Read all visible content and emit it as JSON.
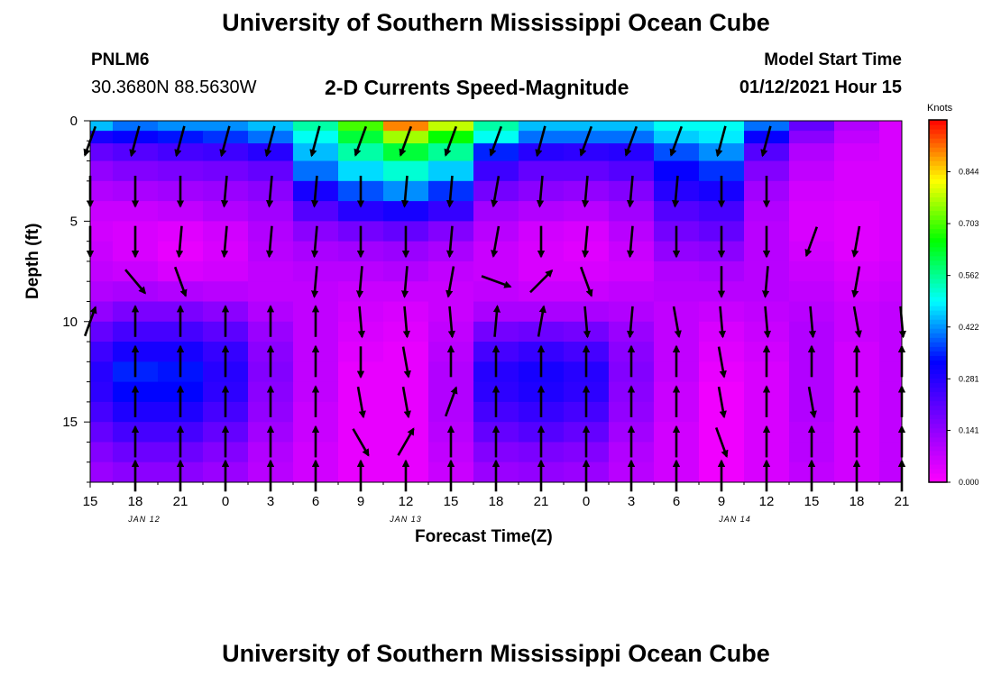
{
  "header": {
    "title": "University of Southern Mississippi Ocean Cube",
    "station": "PNLM6",
    "coords": "30.3680N 88.5630W",
    "subtitle": "2-D Currents Speed-Magnitude",
    "model_start_label": "Model Start Time",
    "model_start_value": "01/12/2021 Hour 15"
  },
  "footer": {
    "title": "University of Southern Mississippi Ocean Cube"
  },
  "chart_data": {
    "type": "heatmap",
    "title": "2-D Currents Speed-Magnitude",
    "xlabel": "Forecast Time(Z)",
    "ylabel": "Depth (ft)",
    "ylim": [
      18,
      0
    ],
    "x_tick_labels": [
      "15",
      "18",
      "21",
      "0",
      "3",
      "6",
      "9",
      "12",
      "15",
      "18",
      "21",
      "0",
      "3",
      "6",
      "9",
      "12",
      "15",
      "18",
      "21"
    ],
    "date_labels": [
      {
        "label": "JAN 12",
        "tick_index": 1.2
      },
      {
        "label": "JAN 13",
        "tick_index": 7.0
      },
      {
        "label": "JAN 14",
        "tick_index": 14.3
      }
    ],
    "y_ticks": [
      0,
      5,
      10,
      15
    ],
    "colorbar": {
      "unit": "Knots",
      "range": [
        0,
        0.985
      ],
      "tick_labels": [
        "0.000",
        "0.141",
        "0.281",
        "0.422",
        "0.562",
        "0.703",
        "0.844"
      ],
      "tick_values": [
        0,
        0.141,
        0.281,
        0.422,
        0.562,
        0.703,
        0.844
      ]
    },
    "colors": {
      "c0": "#ff00ff",
      "c1": "#8000ff",
      "c2": "#0000ff",
      "c3": "#00ffff",
      "c4": "#00ff00",
      "c5": "#ffff00",
      "c6": "#ff0000"
    },
    "grid": false,
    "legend": "right",
    "columns_x": [
      0,
      1,
      2,
      3,
      4,
      5,
      6,
      7,
      8,
      9,
      10,
      11,
      12,
      13,
      14,
      15,
      16,
      17,
      18
    ],
    "depth_rows": [
      0.25,
      0.75,
      1.5,
      2.5,
      3.5,
      4.5,
      5.5,
      6.5,
      7.5,
      8.5,
      9.5,
      10.5,
      11.5,
      12.5,
      13.5,
      14.5,
      15.5,
      16.5,
      17.5
    ],
    "speed_grid": [
      [
        0.45,
        0.4,
        0.42,
        0.42,
        0.45,
        0.55,
        0.7,
        0.9,
        0.78,
        0.55,
        0.45,
        0.45,
        0.45,
        0.5,
        0.5,
        0.4,
        0.2,
        0.1,
        0.05
      ],
      [
        0.3,
        0.32,
        0.34,
        0.36,
        0.4,
        0.5,
        0.62,
        0.76,
        0.66,
        0.5,
        0.4,
        0.4,
        0.4,
        0.46,
        0.48,
        0.32,
        0.15,
        0.08,
        0.05
      ],
      [
        0.2,
        0.22,
        0.24,
        0.25,
        0.28,
        0.45,
        0.55,
        0.62,
        0.56,
        0.35,
        0.28,
        0.27,
        0.28,
        0.38,
        0.42,
        0.22,
        0.1,
        0.06,
        0.05
      ],
      [
        0.14,
        0.16,
        0.17,
        0.18,
        0.2,
        0.4,
        0.47,
        0.52,
        0.46,
        0.25,
        0.2,
        0.2,
        0.22,
        0.32,
        0.36,
        0.16,
        0.08,
        0.05,
        0.05
      ],
      [
        0.1,
        0.11,
        0.12,
        0.13,
        0.15,
        0.3,
        0.38,
        0.42,
        0.36,
        0.18,
        0.15,
        0.14,
        0.16,
        0.28,
        0.3,
        0.12,
        0.06,
        0.05,
        0.05
      ],
      [
        0.07,
        0.07,
        0.08,
        0.1,
        0.12,
        0.22,
        0.28,
        0.3,
        0.26,
        0.12,
        0.1,
        0.09,
        0.12,
        0.22,
        0.24,
        0.1,
        0.05,
        0.04,
        0.05
      ],
      [
        0.06,
        0.05,
        0.04,
        0.06,
        0.1,
        0.15,
        0.18,
        0.2,
        0.16,
        0.09,
        0.06,
        0.05,
        0.09,
        0.18,
        0.2,
        0.09,
        0.05,
        0.04,
        0.05
      ],
      [
        0.07,
        0.05,
        0.03,
        0.05,
        0.09,
        0.11,
        0.12,
        0.13,
        0.11,
        0.07,
        0.05,
        0.04,
        0.07,
        0.14,
        0.15,
        0.09,
        0.06,
        0.04,
        0.05
      ],
      [
        0.08,
        0.07,
        0.05,
        0.06,
        0.08,
        0.09,
        0.09,
        0.1,
        0.08,
        0.07,
        0.05,
        0.05,
        0.06,
        0.1,
        0.11,
        0.09,
        0.07,
        0.05,
        0.06
      ],
      [
        0.1,
        0.11,
        0.1,
        0.09,
        0.08,
        0.08,
        0.07,
        0.07,
        0.07,
        0.08,
        0.07,
        0.07,
        0.08,
        0.09,
        0.09,
        0.09,
        0.08,
        0.06,
        0.07
      ],
      [
        0.14,
        0.17,
        0.17,
        0.15,
        0.1,
        0.08,
        0.06,
        0.05,
        0.07,
        0.11,
        0.11,
        0.11,
        0.1,
        0.08,
        0.07,
        0.08,
        0.09,
        0.07,
        0.08
      ],
      [
        0.2,
        0.24,
        0.24,
        0.21,
        0.13,
        0.08,
        0.05,
        0.04,
        0.08,
        0.18,
        0.19,
        0.18,
        0.13,
        0.08,
        0.05,
        0.07,
        0.1,
        0.07,
        0.08
      ],
      [
        0.25,
        0.3,
        0.3,
        0.26,
        0.15,
        0.08,
        0.04,
        0.03,
        0.09,
        0.24,
        0.26,
        0.24,
        0.15,
        0.08,
        0.04,
        0.06,
        0.1,
        0.06,
        0.08
      ],
      [
        0.28,
        0.35,
        0.34,
        0.28,
        0.16,
        0.08,
        0.03,
        0.03,
        0.1,
        0.28,
        0.3,
        0.28,
        0.16,
        0.08,
        0.03,
        0.05,
        0.1,
        0.06,
        0.08
      ],
      [
        0.27,
        0.33,
        0.33,
        0.27,
        0.15,
        0.08,
        0.03,
        0.03,
        0.1,
        0.27,
        0.29,
        0.27,
        0.15,
        0.07,
        0.02,
        0.05,
        0.1,
        0.06,
        0.08
      ],
      [
        0.24,
        0.29,
        0.29,
        0.24,
        0.14,
        0.07,
        0.03,
        0.03,
        0.1,
        0.24,
        0.26,
        0.24,
        0.14,
        0.07,
        0.02,
        0.05,
        0.1,
        0.06,
        0.08
      ],
      [
        0.2,
        0.24,
        0.24,
        0.2,
        0.12,
        0.07,
        0.03,
        0.03,
        0.09,
        0.2,
        0.22,
        0.2,
        0.12,
        0.06,
        0.02,
        0.05,
        0.09,
        0.06,
        0.08
      ],
      [
        0.16,
        0.19,
        0.19,
        0.16,
        0.1,
        0.06,
        0.03,
        0.03,
        0.08,
        0.16,
        0.17,
        0.16,
        0.1,
        0.06,
        0.02,
        0.05,
        0.09,
        0.06,
        0.08
      ],
      [
        0.13,
        0.15,
        0.15,
        0.13,
        0.09,
        0.06,
        0.03,
        0.03,
        0.07,
        0.13,
        0.14,
        0.13,
        0.09,
        0.06,
        0.02,
        0.05,
        0.08,
        0.06,
        0.08
      ]
    ],
    "vector_rows": [
      1,
      3.5,
      6,
      8,
      10,
      12,
      14,
      16,
      17.7
    ],
    "vector_columns": [
      0,
      1,
      2,
      3,
      4,
      5,
      6,
      7,
      8,
      9,
      10,
      11,
      12,
      13,
      14,
      15,
      16,
      17,
      18
    ],
    "vector_directions_deg": [
      [
        200,
        195,
        195,
        195,
        195,
        195,
        200,
        200,
        200,
        200,
        195,
        200,
        200,
        200,
        195,
        195,
        null,
        null,
        null
      ],
      [
        180,
        180,
        180,
        185,
        185,
        185,
        180,
        185,
        185,
        190,
        185,
        185,
        185,
        185,
        180,
        180,
        null,
        null,
        null
      ],
      [
        180,
        180,
        185,
        185,
        185,
        185,
        180,
        180,
        185,
        190,
        180,
        185,
        185,
        180,
        180,
        180,
        200,
        190,
        null
      ],
      [
        null,
        140,
        160,
        null,
        null,
        185,
        185,
        185,
        190,
        110,
        45,
        160,
        null,
        null,
        180,
        185,
        null,
        190,
        null
      ],
      [
        20,
        0,
        0,
        0,
        0,
        0,
        175,
        175,
        175,
        5,
        10,
        175,
        185,
        170,
        175,
        175,
        175,
        170,
        175
      ],
      [
        null,
        0,
        0,
        0,
        0,
        0,
        180,
        170,
        0,
        0,
        0,
        0,
        0,
        0,
        170,
        0,
        0,
        0,
        0
      ],
      [
        null,
        0,
        0,
        0,
        0,
        0,
        170,
        170,
        20,
        0,
        0,
        0,
        0,
        0,
        170,
        0,
        170,
        0,
        0
      ],
      [
        null,
        0,
        0,
        0,
        0,
        0,
        150,
        30,
        0,
        0,
        0,
        0,
        0,
        0,
        160,
        0,
        0,
        0,
        0
      ],
      [
        null,
        0,
        0,
        0,
        0,
        0,
        0,
        0,
        0,
        0,
        0,
        0,
        0,
        0,
        0,
        0,
        0,
        0,
        0
      ]
    ],
    "vector_magnitudes": [
      [
        0.4,
        0.4,
        0.42,
        0.42,
        0.45,
        0.55,
        0.7,
        0.9,
        0.78,
        0.55,
        0.45,
        0.45,
        0.45,
        0.5,
        0.5,
        0.4,
        0,
        0,
        0
      ],
      [
        0.2,
        0.22,
        0.24,
        0.25,
        0.28,
        0.45,
        0.55,
        0.62,
        0.56,
        0.35,
        0.28,
        0.27,
        0.28,
        0.38,
        0.42,
        0.22,
        0,
        0,
        0
      ],
      [
        0.07,
        0.07,
        0.08,
        0.1,
        0.12,
        0.22,
        0.28,
        0.3,
        0.26,
        0.12,
        0.1,
        0.09,
        0.12,
        0.22,
        0.24,
        0.1,
        0.05,
        0.04,
        0
      ],
      [
        0,
        0.05,
        0.03,
        0,
        0,
        0.11,
        0.12,
        0.13,
        0.11,
        0.07,
        0.05,
        0.04,
        0,
        0,
        0.15,
        0.09,
        0,
        0.04,
        0
      ],
      [
        0.1,
        0.11,
        0.1,
        0.09,
        0.08,
        0.08,
        0.07,
        0.07,
        0.07,
        0.08,
        0.07,
        0.07,
        0.08,
        0.09,
        0.09,
        0.09,
        0.08,
        0.06,
        0.07
      ],
      [
        0,
        0.24,
        0.24,
        0.21,
        0.13,
        0.08,
        0.05,
        0.04,
        0.08,
        0.18,
        0.19,
        0.18,
        0.13,
        0.08,
        0.05,
        0.07,
        0.1,
        0.07,
        0.08
      ],
      [
        0,
        0.35,
        0.34,
        0.28,
        0.16,
        0.08,
        0.03,
        0.03,
        0.1,
        0.28,
        0.3,
        0.28,
        0.16,
        0.08,
        0.03,
        0.05,
        0.1,
        0.06,
        0.08
      ],
      [
        0,
        0.29,
        0.29,
        0.24,
        0.14,
        0.07,
        0.03,
        0.03,
        0.1,
        0.24,
        0.26,
        0.24,
        0.14,
        0.07,
        0.02,
        0.05,
        0.1,
        0.06,
        0.08
      ],
      [
        0,
        0.15,
        0.15,
        0.13,
        0.09,
        0.06,
        0.03,
        0.03,
        0.07,
        0.13,
        0.14,
        0.13,
        0.09,
        0.06,
        0.02,
        0.05,
        0.08,
        0.06,
        0.08
      ]
    ]
  }
}
